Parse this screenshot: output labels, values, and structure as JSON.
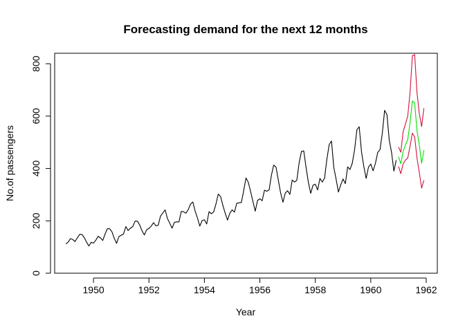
{
  "chart_data": {
    "type": "line",
    "title": "Forecasting demand for the next 12 months",
    "xlabel": "Year",
    "ylabel": "No.of passengers",
    "xlim": [
      1948.6,
      1962.4
    ],
    "ylim": [
      0,
      840
    ],
    "x_ticks": [
      1950,
      1952,
      1954,
      1956,
      1958,
      1960,
      1962
    ],
    "y_ticks": [
      0,
      200,
      400,
      600,
      800
    ],
    "grid": false,
    "series": [
      {
        "color": "#000000",
        "x_start": 1949.0,
        "x_step": 0.0833333,
        "values": [
          112,
          118,
          132,
          129,
          121,
          135,
          148,
          148,
          136,
          119,
          104,
          118,
          115,
          126,
          141,
          135,
          125,
          149,
          170,
          170,
          158,
          133,
          114,
          140,
          145,
          150,
          178,
          163,
          172,
          178,
          199,
          199,
          184,
          162,
          146,
          166,
          171,
          180,
          193,
          181,
          183,
          218,
          230,
          242,
          209,
          191,
          172,
          194,
          196,
          196,
          236,
          235,
          229,
          243,
          264,
          272,
          237,
          211,
          180,
          201,
          204,
          188,
          235,
          227,
          234,
          264,
          302,
          293,
          259,
          229,
          203,
          229,
          242,
          233,
          267,
          269,
          270,
          315,
          364,
          347,
          312,
          274,
          237,
          278,
          284,
          277,
          317,
          313,
          318,
          374,
          413,
          405,
          355,
          306,
          271,
          306,
          315,
          301,
          356,
          348,
          355,
          422,
          465,
          467,
          404,
          347,
          305,
          336,
          340,
          318,
          362,
          348,
          363,
          435,
          491,
          505,
          404,
          359,
          310,
          337,
          360,
          342,
          406,
          396,
          420,
          472,
          548,
          559,
          463,
          407,
          362,
          405,
          417,
          391,
          419,
          461,
          472,
          535,
          622,
          606,
          508,
          461,
          390,
          432
        ]
      },
      {
        "color": "#00e000",
        "x_start": 1961.0,
        "x_step": 0.0833333,
        "values": [
          445,
          418,
          465,
          490,
          510,
          575,
          658,
          650,
          545,
          490,
          420,
          470
        ]
      },
      {
        "color": "#d0103a",
        "x_start": 1961.0,
        "x_step": 0.0833333,
        "values": [
          408,
          380,
          418,
          432,
          440,
          485,
          535,
          520,
          440,
          385,
          325,
          355
        ]
      },
      {
        "color": "#d0103a",
        "x_start": 1961.0,
        "x_step": 0.0833333,
        "values": [
          482,
          462,
          540,
          570,
          600,
          690,
          830,
          835,
          690,
          610,
          560,
          630
        ]
      }
    ]
  }
}
